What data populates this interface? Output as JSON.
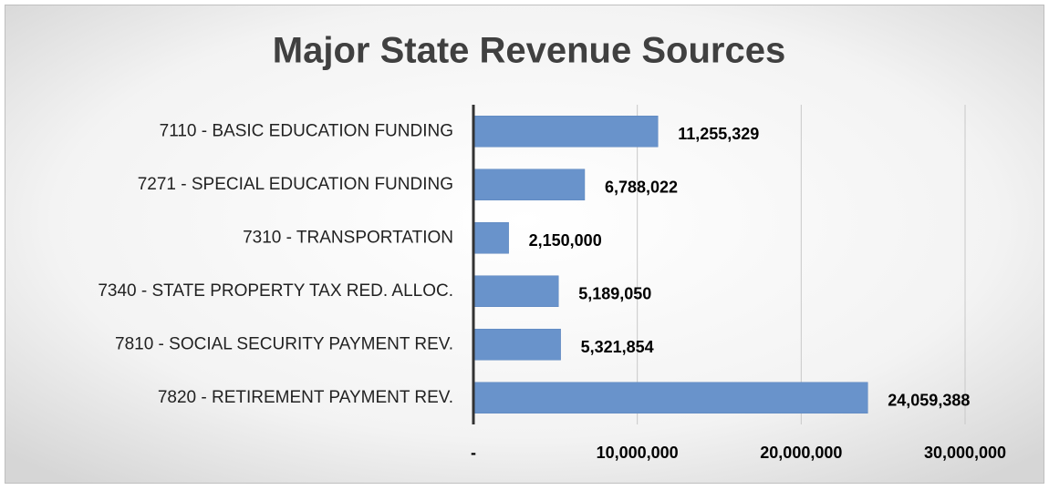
{
  "chart_data": {
    "type": "bar",
    "orientation": "horizontal",
    "title": "Major State Revenue Sources",
    "categories": [
      "7110 - BASIC EDUCATION FUNDING",
      "7271 - SPECIAL EDUCATION FUNDING",
      "7310 - TRANSPORTATION",
      "7340 - STATE PROPERTY TAX RED. ALLOC.",
      "7810 - SOCIAL SECURITY PAYMENT REV.",
      "7820 - RETIREMENT PAYMENT REV."
    ],
    "values": [
      11255329,
      6788022,
      2150000,
      5189050,
      5321854,
      24059388
    ],
    "value_labels": [
      "11,255,329",
      "6,788,022",
      "2,150,000",
      "5,189,050",
      "5,321,854",
      "24,059,388"
    ],
    "color": "#6993cb",
    "xlim": [
      0,
      30000000
    ],
    "xticks": [
      {
        "value": 0,
        "label": "-"
      },
      {
        "value": 10000000,
        "label": "10,000,000"
      },
      {
        "value": 20000000,
        "label": "20,000,000"
      },
      {
        "value": 30000000,
        "label": "30,000,000"
      }
    ],
    "grid": true
  }
}
